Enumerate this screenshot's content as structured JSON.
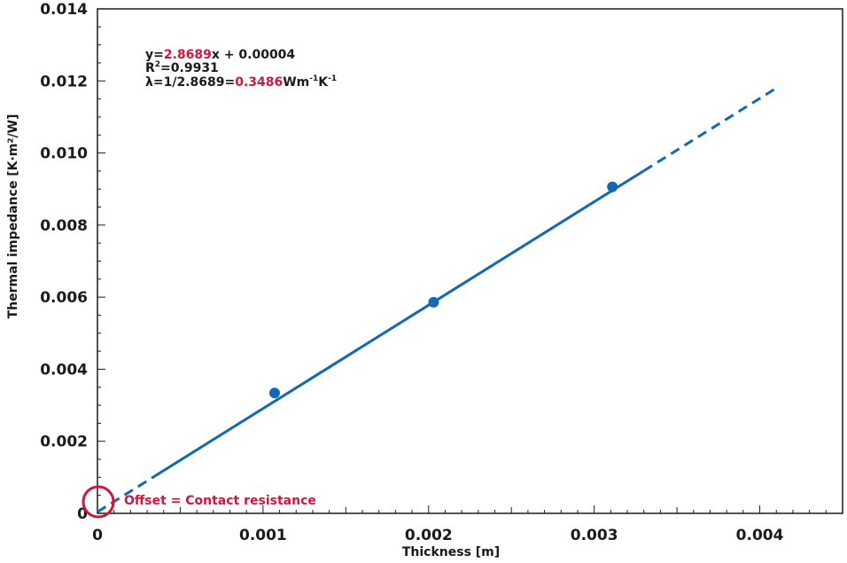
{
  "chart_data": {
    "type": "scatter",
    "xlabel": "Thickness [m]",
    "ylabel": "Thermal impedance [K·m²/W]",
    "xlim": [
      0,
      0.0045
    ],
    "ylim": [
      0,
      0.014
    ],
    "x_ticks": [
      {
        "value": 0,
        "label": "0"
      },
      {
        "value": 0.001,
        "label": "0.001"
      },
      {
        "value": 0.002,
        "label": "0.002"
      },
      {
        "value": 0.003,
        "label": "0.003"
      },
      {
        "value": 0.004,
        "label": "0.004"
      }
    ],
    "y_ticks": [
      {
        "value": 0,
        "label": "0"
      },
      {
        "value": 0.002,
        "label": "0.002"
      },
      {
        "value": 0.004,
        "label": "0.004"
      },
      {
        "value": 0.006,
        "label": "0.006"
      },
      {
        "value": 0.008,
        "label": "0.008"
      },
      {
        "value": 0.01,
        "label": "0.010"
      },
      {
        "value": 0.012,
        "label": "0.012"
      },
      {
        "value": 0.014,
        "label": "0.014"
      }
    ],
    "points": [
      {
        "x": 0.00107,
        "y": 0.00334
      },
      {
        "x": 0.00203,
        "y": 0.00586
      },
      {
        "x": 0.00311,
        "y": 0.00906
      }
    ],
    "fit": {
      "slope": 2.8689,
      "intercept": 4e-05,
      "solid_range": [
        0.00035,
        0.0033
      ],
      "dashed_ranges": [
        [
          0,
          0.00035
        ],
        [
          0.0033,
          0.0041
        ]
      ]
    },
    "annotations": {
      "equation": {
        "prefix": "y=",
        "slope": "2.8689",
        "suffix": "x + 0.00004"
      },
      "r2": {
        "prefix": "R",
        "sup": "2",
        "suffix": "=0.9931"
      },
      "lambda": {
        "prefix": "λ=1/2.8689=",
        "value": "0.3486",
        "unit": "Wm",
        "sup1": "-1",
        "mid": "K",
        "sup2": "-1"
      },
      "offset": "Offset = Contact resistance"
    },
    "grid": false,
    "colors": {
      "series": "#1268b3",
      "accent": "#d0163c",
      "axis": "#1a1a1a"
    }
  }
}
